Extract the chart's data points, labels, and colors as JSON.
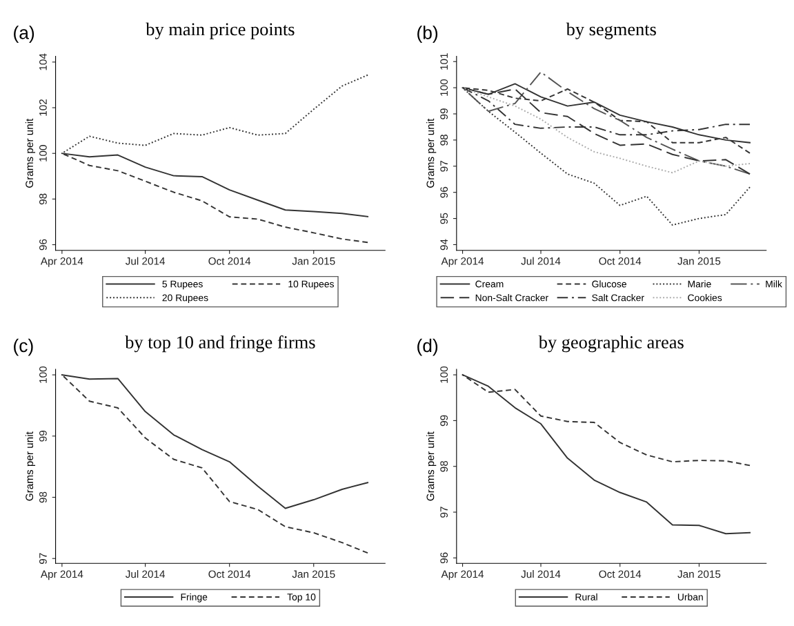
{
  "chart_data": [
    {
      "type": "line",
      "title": "by main price points",
      "annotations": [
        "(a)"
      ],
      "ylabel": "Grams per unit",
      "x": [
        "2014-04",
        "2014-05",
        "2014-06",
        "2014-07",
        "2014-08",
        "2014-09",
        "2014-10",
        "2014-11",
        "2014-12",
        "2015-01",
        "2015-02",
        "2015-03"
      ],
      "series": [
        {
          "name": "5 Rupees",
          "color": "#333333",
          "line_style": "solid",
          "values": [
            100,
            99.85,
            99.93,
            99.4,
            99.02,
            98.98,
            98.4,
            97.95,
            97.52,
            97.45,
            97.37,
            97.23
          ]
        },
        {
          "name": "10 Rupees",
          "color": "#333333",
          "line_style": "dashed",
          "values": [
            100,
            99.47,
            99.24,
            98.78,
            98.3,
            97.92,
            97.22,
            97.12,
            96.77,
            96.52,
            96.25,
            96.1
          ]
        },
        {
          "name": "20 Rupees",
          "color": "#333333",
          "line_style": "dotted",
          "values": [
            100,
            100.75,
            100.45,
            100.35,
            100.87,
            100.8,
            101.13,
            100.8,
            100.87,
            101.93,
            102.95,
            103.43
          ]
        }
      ],
      "xlim": [
        "2014-03-25",
        "2015-03-20"
      ],
      "xticks": [
        {
          "value": "2014-04",
          "label": "Apr 2014"
        },
        {
          "value": "2014-07",
          "label": "Jul 2014"
        },
        {
          "value": "2014-10",
          "label": "Oct 2014"
        },
        {
          "value": "2015-01",
          "label": "Jan 2015"
        }
      ],
      "ylim": [
        95.75,
        104.25
      ],
      "yticks": [
        96,
        98,
        100,
        102,
        104
      ],
      "grid": false,
      "legend": "bottom",
      "marker": "none"
    },
    {
      "type": "line",
      "title": "by segments",
      "annotations": [
        "(b)"
      ],
      "ylabel": "Grams per unit",
      "x": [
        "2014-04",
        "2014-05",
        "2014-06",
        "2014-07",
        "2014-08",
        "2014-09",
        "2014-10",
        "2014-11",
        "2014-12",
        "2015-01",
        "2015-02",
        "2015-03"
      ],
      "series": [
        {
          "name": "Cream",
          "color": "#333333",
          "line_style": "solid",
          "values": [
            100,
            99.75,
            100.15,
            99.65,
            99.3,
            99.45,
            98.95,
            98.7,
            98.5,
            98.2,
            98.0,
            97.9
          ]
        },
        {
          "name": "Glucose",
          "color": "#333333",
          "line_style": "dashed",
          "values": [
            100,
            99.9,
            99.6,
            99.5,
            99.95,
            99.45,
            98.75,
            98.7,
            97.9,
            97.9,
            98.1,
            97.5
          ]
        },
        {
          "name": "Marie",
          "color": "#333333",
          "line_style": "dotted",
          "values": [
            100,
            99.1,
            98.3,
            97.5,
            96.7,
            96.35,
            95.5,
            95.85,
            94.75,
            95.0,
            95.15,
            96.2
          ]
        },
        {
          "name": "Milk",
          "color": "#555555",
          "line_style": "longdashdot",
          "values": [
            100,
            99.1,
            99.4,
            100.6,
            99.85,
            99.2,
            98.75,
            98.1,
            97.65,
            97.2,
            97.0,
            96.7
          ]
        },
        {
          "name": "Non-Salt Cracker",
          "color": "#333333",
          "line_style": "longdash",
          "values": [
            100,
            99.75,
            99.95,
            99.05,
            98.9,
            98.25,
            97.8,
            97.85,
            97.45,
            97.2,
            97.25,
            96.7
          ]
        },
        {
          "name": "Salt Cracker",
          "color": "#333333",
          "line_style": "dashdot",
          "values": [
            100,
            99.5,
            98.6,
            98.45,
            98.5,
            98.5,
            98.2,
            98.2,
            98.35,
            98.4,
            98.6,
            98.6
          ]
        },
        {
          "name": "Cookies",
          "color": "#aaaaaa",
          "line_style": "dotted",
          "values": [
            100,
            99.65,
            99.3,
            98.8,
            98.1,
            97.55,
            97.3,
            97.0,
            96.75,
            97.2,
            97.0,
            97.1
          ]
        }
      ],
      "xlim": [
        "2014-03-25",
        "2015-03-20"
      ],
      "xticks": [
        {
          "value": "2014-04",
          "label": "Apr 2014"
        },
        {
          "value": "2014-07",
          "label": "Jul 2014"
        },
        {
          "value": "2014-10",
          "label": "Oct 2014"
        },
        {
          "value": "2015-01",
          "label": "Jan 2015"
        }
      ],
      "ylim": [
        93.78,
        101.2
      ],
      "yticks": [
        94,
        95,
        96,
        97,
        98,
        99,
        100,
        101
      ],
      "grid": false,
      "legend": "bottom",
      "marker": "none"
    },
    {
      "type": "line",
      "title": "by top 10 and fringe firms",
      "annotations": [
        "(c)"
      ],
      "ylabel": "Grams per unit",
      "x": [
        "2014-04",
        "2014-05",
        "2014-06",
        "2014-07",
        "2014-08",
        "2014-09",
        "2014-10",
        "2014-11",
        "2014-12",
        "2015-01",
        "2015-02",
        "2015-03"
      ],
      "series": [
        {
          "name": "Fringe",
          "color": "#333333",
          "line_style": "solid",
          "values": [
            100,
            99.93,
            99.94,
            99.4,
            99.02,
            98.78,
            98.58,
            98.18,
            97.82,
            97.96,
            98.13,
            98.24
          ]
        },
        {
          "name": "Top 10",
          "color": "#333333",
          "line_style": "dashed",
          "values": [
            100,
            99.57,
            99.46,
            98.97,
            98.62,
            98.48,
            97.93,
            97.8,
            97.52,
            97.42,
            97.26,
            97.09
          ]
        }
      ],
      "xlim": [
        "2014-03-25",
        "2015-03-20"
      ],
      "xticks": [
        {
          "value": "2014-04",
          "label": "Apr 2014"
        },
        {
          "value": "2014-07",
          "label": "Jul 2014"
        },
        {
          "value": "2014-10",
          "label": "Oct 2014"
        },
        {
          "value": "2015-01",
          "label": "Jan 2015"
        }
      ],
      "ylim": [
        96.92,
        100.09
      ],
      "yticks": [
        97,
        98,
        99,
        100
      ],
      "grid": false,
      "legend": "bottom",
      "marker": "none"
    },
    {
      "type": "line",
      "title": "by geographic areas",
      "annotations": [
        "(d)"
      ],
      "ylabel": "Grams per unit",
      "x": [
        "2014-04",
        "2014-05",
        "2014-06",
        "2014-07",
        "2014-08",
        "2014-09",
        "2014-10",
        "2014-11",
        "2014-12",
        "2015-01",
        "2015-02",
        "2015-03"
      ],
      "series": [
        {
          "name": "Rural",
          "color": "#333333",
          "line_style": "solid",
          "values": [
            100,
            99.75,
            99.28,
            98.93,
            98.18,
            97.7,
            97.43,
            97.22,
            96.72,
            96.71,
            96.53,
            96.55
          ]
        },
        {
          "name": "Urban",
          "color": "#333333",
          "line_style": "dashed",
          "values": [
            100,
            99.62,
            99.68,
            99.1,
            98.98,
            98.96,
            98.52,
            98.25,
            98.1,
            98.13,
            98.12,
            98.02
          ]
        }
      ],
      "xlim": [
        "2014-03-25",
        "2015-03-20"
      ],
      "xticks": [
        {
          "value": "2014-04",
          "label": "Apr 2014"
        },
        {
          "value": "2014-07",
          "label": "Jul 2014"
        },
        {
          "value": "2014-10",
          "label": "Oct 2014"
        },
        {
          "value": "2015-01",
          "label": "Jan 2015"
        }
      ],
      "ylim": [
        95.88,
        100.12
      ],
      "yticks": [
        96,
        97,
        98,
        99,
        100
      ],
      "grid": false,
      "legend": "bottom",
      "marker": "none"
    }
  ]
}
